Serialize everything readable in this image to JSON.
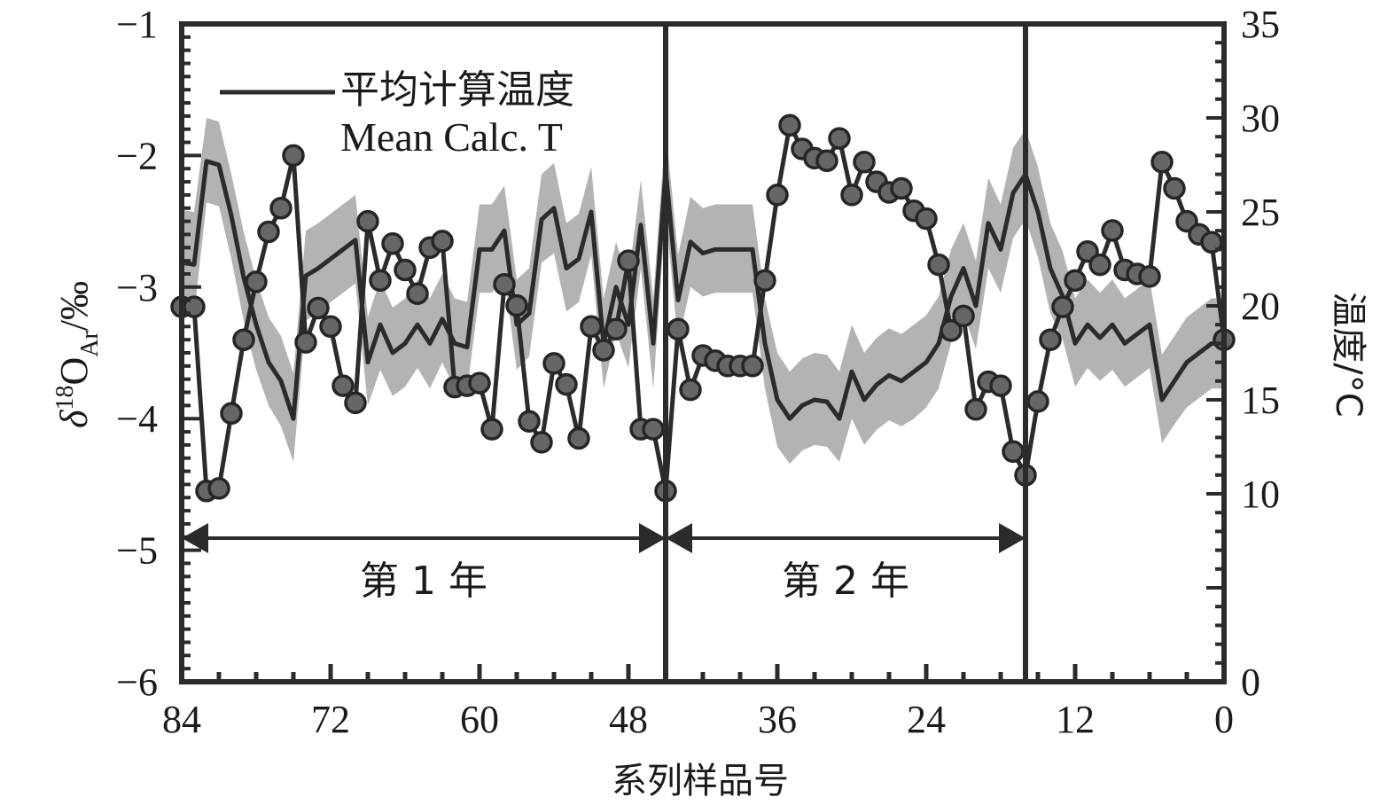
{
  "chart_data": {
    "type": "line",
    "xlabel": "系列样品号",
    "ylabel": "δ18OAr/‰",
    "ylabel_parts": {
      "delta": "δ",
      "sup": "18",
      "main": "O",
      "sub": "Ar",
      "unit": "/‰"
    },
    "y2label": "温度/°C",
    "xlim": [
      84,
      0
    ],
    "ylim": [
      -6,
      -1
    ],
    "y2lim": [
      0,
      35
    ],
    "x_ticks": [
      84,
      72,
      60,
      48,
      36,
      24,
      12,
      0
    ],
    "y_ticks": [
      -1,
      -2,
      -3,
      -4,
      -5,
      -6
    ],
    "y_tick_labels": [
      "−1",
      "−2",
      "−3",
      "−4",
      "−5",
      "−6"
    ],
    "y2_ticks": [
      35,
      30,
      25,
      20,
      15,
      10,
      0
    ],
    "legend": {
      "position": "top-left",
      "line1": "平均计算温度",
      "line2": "Mean Calc. T"
    },
    "year_boundaries": [
      45,
      16
    ],
    "year_spans": [
      {
        "label": "第 1 年",
        "from": 84,
        "to": 45
      },
      {
        "label": "第 2 年",
        "from": 45,
        "to": 16
      }
    ],
    "series": [
      {
        "axis": "left",
        "style": "line-markers",
        "x": [
          84,
          83,
          82,
          81,
          80,
          79,
          78,
          77,
          76,
          75,
          74,
          73,
          72,
          71,
          70,
          69,
          68,
          67,
          66,
          65,
          64,
          63,
          62,
          61,
          60,
          59,
          58,
          57,
          56,
          55,
          54,
          53,
          52,
          51,
          50,
          49,
          48,
          47,
          46,
          45,
          44,
          43,
          42,
          41,
          40,
          39,
          38,
          37,
          36,
          35,
          34,
          33,
          32,
          31,
          30,
          29,
          28,
          27,
          26,
          25,
          24,
          23,
          22,
          21,
          20,
          19,
          18,
          17,
          16,
          15,
          14,
          13,
          12,
          11,
          10,
          9,
          8,
          7,
          6,
          5,
          4,
          3,
          2,
          1,
          0
        ],
        "values": [
          -3.15,
          -3.15,
          -4.55,
          -4.53,
          -3.96,
          -3.4,
          -2.96,
          -2.58,
          -2.4,
          -2.0,
          -3.42,
          -3.16,
          -3.3,
          -3.75,
          -3.88,
          -2.5,
          -2.95,
          -2.67,
          -2.87,
          -3.05,
          -2.7,
          -2.65,
          -3.76,
          -3.75,
          -3.73,
          -4.08,
          -2.98,
          -3.14,
          -4.02,
          -4.18,
          -3.58,
          -3.74,
          -4.15,
          -3.3,
          -3.48,
          -3.32,
          -2.8,
          -4.08,
          -4.08,
          -4.55,
          -3.32,
          -3.78,
          -3.52,
          -3.56,
          -3.6,
          -3.6,
          -3.6,
          -2.95,
          -2.3,
          -1.77,
          -1.95,
          -2.02,
          -2.04,
          -1.87,
          -2.3,
          -2.05,
          -2.2,
          -2.28,
          -2.25,
          -2.42,
          -2.48,
          -2.83,
          -3.33,
          -3.22,
          -3.93,
          -3.72,
          -3.75,
          -4.25,
          -4.43,
          -3.87,
          -3.4,
          -3.15,
          -2.95,
          -2.73,
          -2.83,
          -2.57,
          -2.87,
          -2.9,
          -2.92,
          -2.05,
          -2.25,
          -2.5,
          -2.6,
          -2.66,
          -3.4
        ]
      },
      {
        "axis": "right",
        "style": "line-band",
        "x": [
          84,
          83,
          82,
          81,
          80,
          79,
          78,
          77,
          76,
          75,
          74,
          73,
          72,
          71,
          70,
          69,
          68,
          67,
          66,
          65,
          64,
          63,
          62,
          61,
          60,
          59,
          58,
          57,
          56,
          55,
          54,
          53,
          52,
          51,
          50,
          49,
          48,
          47,
          46,
          45,
          44,
          43,
          42,
          41,
          40,
          39,
          38,
          37,
          36,
          35,
          34,
          33,
          32,
          31,
          30,
          29,
          28,
          27,
          26,
          25,
          24,
          23,
          22,
          21,
          20,
          19,
          18,
          17,
          16,
          15,
          14,
          13,
          12,
          11,
          10,
          9,
          8,
          7,
          6,
          5,
          4,
          3,
          2,
          1,
          0
        ],
        "values": [
          22.3,
          22.2,
          27.7,
          27.5,
          24.8,
          21.5,
          19.0,
          17.0,
          16.0,
          14.0,
          21.6,
          22.0,
          22.5,
          23.0,
          23.5,
          17.0,
          19.0,
          17.5,
          18.0,
          19.0,
          18.0,
          19.3,
          18.0,
          17.8,
          23.0,
          23.0,
          24.0,
          19.0,
          19.6,
          24.6,
          25.2,
          22.0,
          22.5,
          25.0,
          18.0,
          21.0,
          19.0,
          24.3,
          18.0,
          27.2,
          20.3,
          23.4,
          22.8,
          23.0,
          23.0,
          23.0,
          23.0,
          18.0,
          15.0,
          14.0,
          14.7,
          15.0,
          14.9,
          14.0,
          16.5,
          15.0,
          15.8,
          16.3,
          16.0,
          16.5,
          17.0,
          18.0,
          20.5,
          22.0,
          20.0,
          24.4,
          23.0,
          26.0,
          27.0,
          25.0,
          22.0,
          20.5,
          18.0,
          19.0,
          18.3,
          19.0,
          18.0,
          18.5,
          19.0,
          15.0,
          16.0,
          17.0,
          17.5,
          18.0,
          18.0
        ],
        "band_low": [
          19.5,
          19.5,
          25.5,
          25.3,
          22.5,
          19.2,
          16.6,
          14.7,
          13.6,
          11.7,
          19.2,
          19.7,
          20.2,
          20.7,
          21.2,
          14.7,
          16.6,
          15.2,
          15.7,
          16.7,
          15.6,
          17.0,
          15.6,
          15.5,
          20.7,
          20.7,
          21.6,
          16.6,
          17.3,
          22.3,
          22.8,
          19.7,
          20.2,
          22.7,
          15.6,
          18.6,
          16.7,
          22.0,
          15.6,
          25.0,
          18.0,
          21.0,
          20.5,
          20.7,
          20.7,
          20.7,
          20.7,
          15.6,
          12.5,
          11.6,
          12.3,
          12.6,
          12.5,
          11.7,
          14.0,
          12.6,
          13.4,
          13.9,
          13.6,
          14.0,
          14.6,
          15.6,
          18.0,
          19.6,
          17.7,
          22.0,
          20.7,
          23.6,
          24.6,
          22.6,
          19.6,
          18.2,
          15.7,
          16.7,
          16.0,
          16.6,
          15.7,
          16.2,
          16.7,
          12.7,
          13.7,
          14.6,
          15.1,
          15.6,
          15.6
        ],
        "band_high": [
          25.1,
          25.0,
          30.0,
          29.8,
          27.0,
          23.9,
          21.4,
          19.4,
          18.4,
          16.4,
          24.0,
          24.4,
          24.9,
          25.4,
          25.9,
          19.4,
          21.4,
          19.9,
          20.4,
          21.4,
          20.4,
          21.7,
          20.4,
          20.2,
          25.4,
          25.4,
          26.4,
          21.4,
          22.0,
          27.0,
          27.6,
          24.4,
          24.9,
          27.4,
          20.4,
          23.4,
          21.4,
          26.7,
          20.4,
          29.5,
          22.7,
          25.8,
          25.2,
          25.4,
          25.4,
          25.4,
          25.4,
          20.4,
          17.5,
          16.5,
          17.2,
          17.5,
          17.4,
          16.5,
          19.0,
          17.5,
          18.3,
          18.8,
          18.5,
          19.0,
          19.5,
          20.5,
          23.0,
          24.4,
          22.4,
          26.8,
          25.4,
          28.4,
          29.4,
          27.4,
          24.4,
          22.9,
          20.4,
          21.4,
          20.7,
          21.4,
          20.4,
          20.9,
          21.4,
          17.4,
          18.4,
          19.4,
          19.9,
          20.4,
          20.4
        ]
      }
    ],
    "colors": {
      "frame": "#2b2b2b",
      "line": "#2b2b2b",
      "marker_fill": "#666666",
      "marker_stroke": "#262626",
      "band": "#b3b3b3"
    },
    "grid": false
  }
}
